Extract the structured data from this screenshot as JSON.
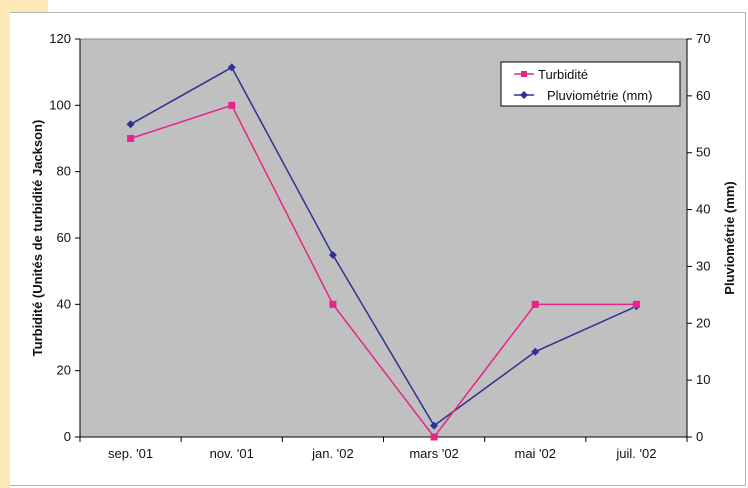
{
  "chart_data": {
    "type": "line",
    "categories": [
      "sep. '01",
      "nov. '01",
      "jan. '02",
      "mars '02",
      "mai '02",
      "juil. '02"
    ],
    "series": [
      {
        "name": "Turbidité",
        "axis": "left",
        "color": "#e8238c",
        "marker": "square",
        "values": [
          90,
          100,
          40,
          0,
          40,
          40
        ]
      },
      {
        "name": "Pluviométrie (mm)",
        "axis": "right",
        "color": "#2e3192",
        "marker": "diamond",
        "values": [
          55,
          65,
          32,
          2,
          15,
          23
        ]
      }
    ],
    "ylabel": "Turbidité (Unités de turbidité Jackson)",
    "y2label": "Pluviométrie (mm)",
    "ylim": [
      0,
      120
    ],
    "y2lim": [
      0,
      70
    ],
    "yticks": [
      0,
      20,
      40,
      60,
      80,
      100,
      120
    ],
    "y2ticks": [
      0,
      10,
      20,
      30,
      40,
      50,
      60,
      70
    ],
    "grid": false,
    "legend_position": "top-right",
    "plot_background": "#c0c0c0"
  }
}
